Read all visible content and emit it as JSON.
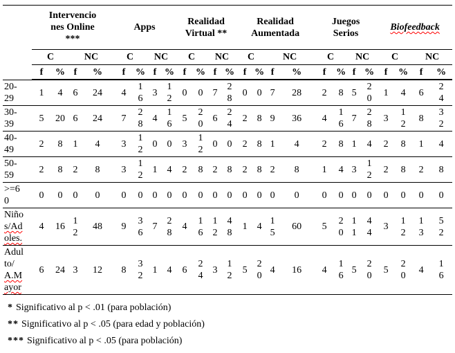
{
  "table": {
    "corner_label": "",
    "groups": [
      {
        "label": "Intervenciones Online ***"
      },
      {
        "label": "Apps"
      },
      {
        "label": "Realidad Virtual **"
      },
      {
        "label": "Realidad Aumentada"
      },
      {
        "label": "Juegos Serios"
      },
      {
        "label": "Biofeedback"
      }
    ],
    "condition_labels": [
      "C",
      "NC"
    ],
    "measure_labels": [
      "f",
      "%"
    ],
    "rows": [
      {
        "label": "20-29",
        "values": [
          1,
          4,
          6,
          24,
          4,
          16,
          3,
          12,
          0,
          0,
          7,
          28,
          0,
          0,
          7,
          28,
          2,
          8,
          5,
          20,
          1,
          4,
          6,
          24
        ]
      },
      {
        "label": "30-39",
        "values": [
          5,
          20,
          6,
          24,
          7,
          28,
          4,
          16,
          5,
          20,
          6,
          24,
          2,
          8,
          9,
          36,
          4,
          16,
          7,
          28,
          3,
          12,
          8,
          32
        ]
      },
      {
        "label": "40-49",
        "values": [
          2,
          8,
          1,
          4,
          3,
          12,
          0,
          0,
          3,
          12,
          0,
          0,
          2,
          8,
          1,
          4,
          2,
          8,
          1,
          4,
          2,
          8,
          1,
          4
        ]
      },
      {
        "label": "50-59",
        "values": [
          2,
          8,
          2,
          8,
          3,
          12,
          1,
          4,
          2,
          8,
          2,
          8,
          2,
          8,
          2,
          8,
          1,
          4,
          3,
          12,
          2,
          8,
          2,
          8
        ]
      },
      {
        "label": ">=60",
        "values": [
          0,
          0,
          0,
          0,
          0,
          0,
          0,
          0,
          0,
          0,
          0,
          0,
          0,
          0,
          0,
          0,
          0,
          0,
          0,
          0,
          0,
          0,
          0,
          0
        ]
      },
      {
        "label": "Niños/Adoles.",
        "values": [
          4,
          16,
          12,
          48,
          9,
          36,
          7,
          28,
          4,
          16,
          12,
          48,
          1,
          4,
          15,
          60,
          5,
          20,
          11,
          44,
          3,
          12,
          13,
          52
        ]
      },
      {
        "label": "Adulto/A.Mayor",
        "values": [
          6,
          24,
          3,
          12,
          8,
          32,
          1,
          4,
          6,
          24,
          3,
          12,
          5,
          20,
          4,
          16,
          4,
          16,
          5,
          20,
          5,
          20,
          4,
          16
        ]
      }
    ],
    "footnotes": [
      {
        "marker": "*",
        "text": "Significativo al p < .01 (para población)"
      },
      {
        "marker": "**",
        "text": "Significativo al p < .05 (para edad y población)"
      },
      {
        "marker": "***",
        "text": "Significativo al p < .05 (para población)"
      }
    ],
    "squiggle_color": "#ff0000"
  }
}
